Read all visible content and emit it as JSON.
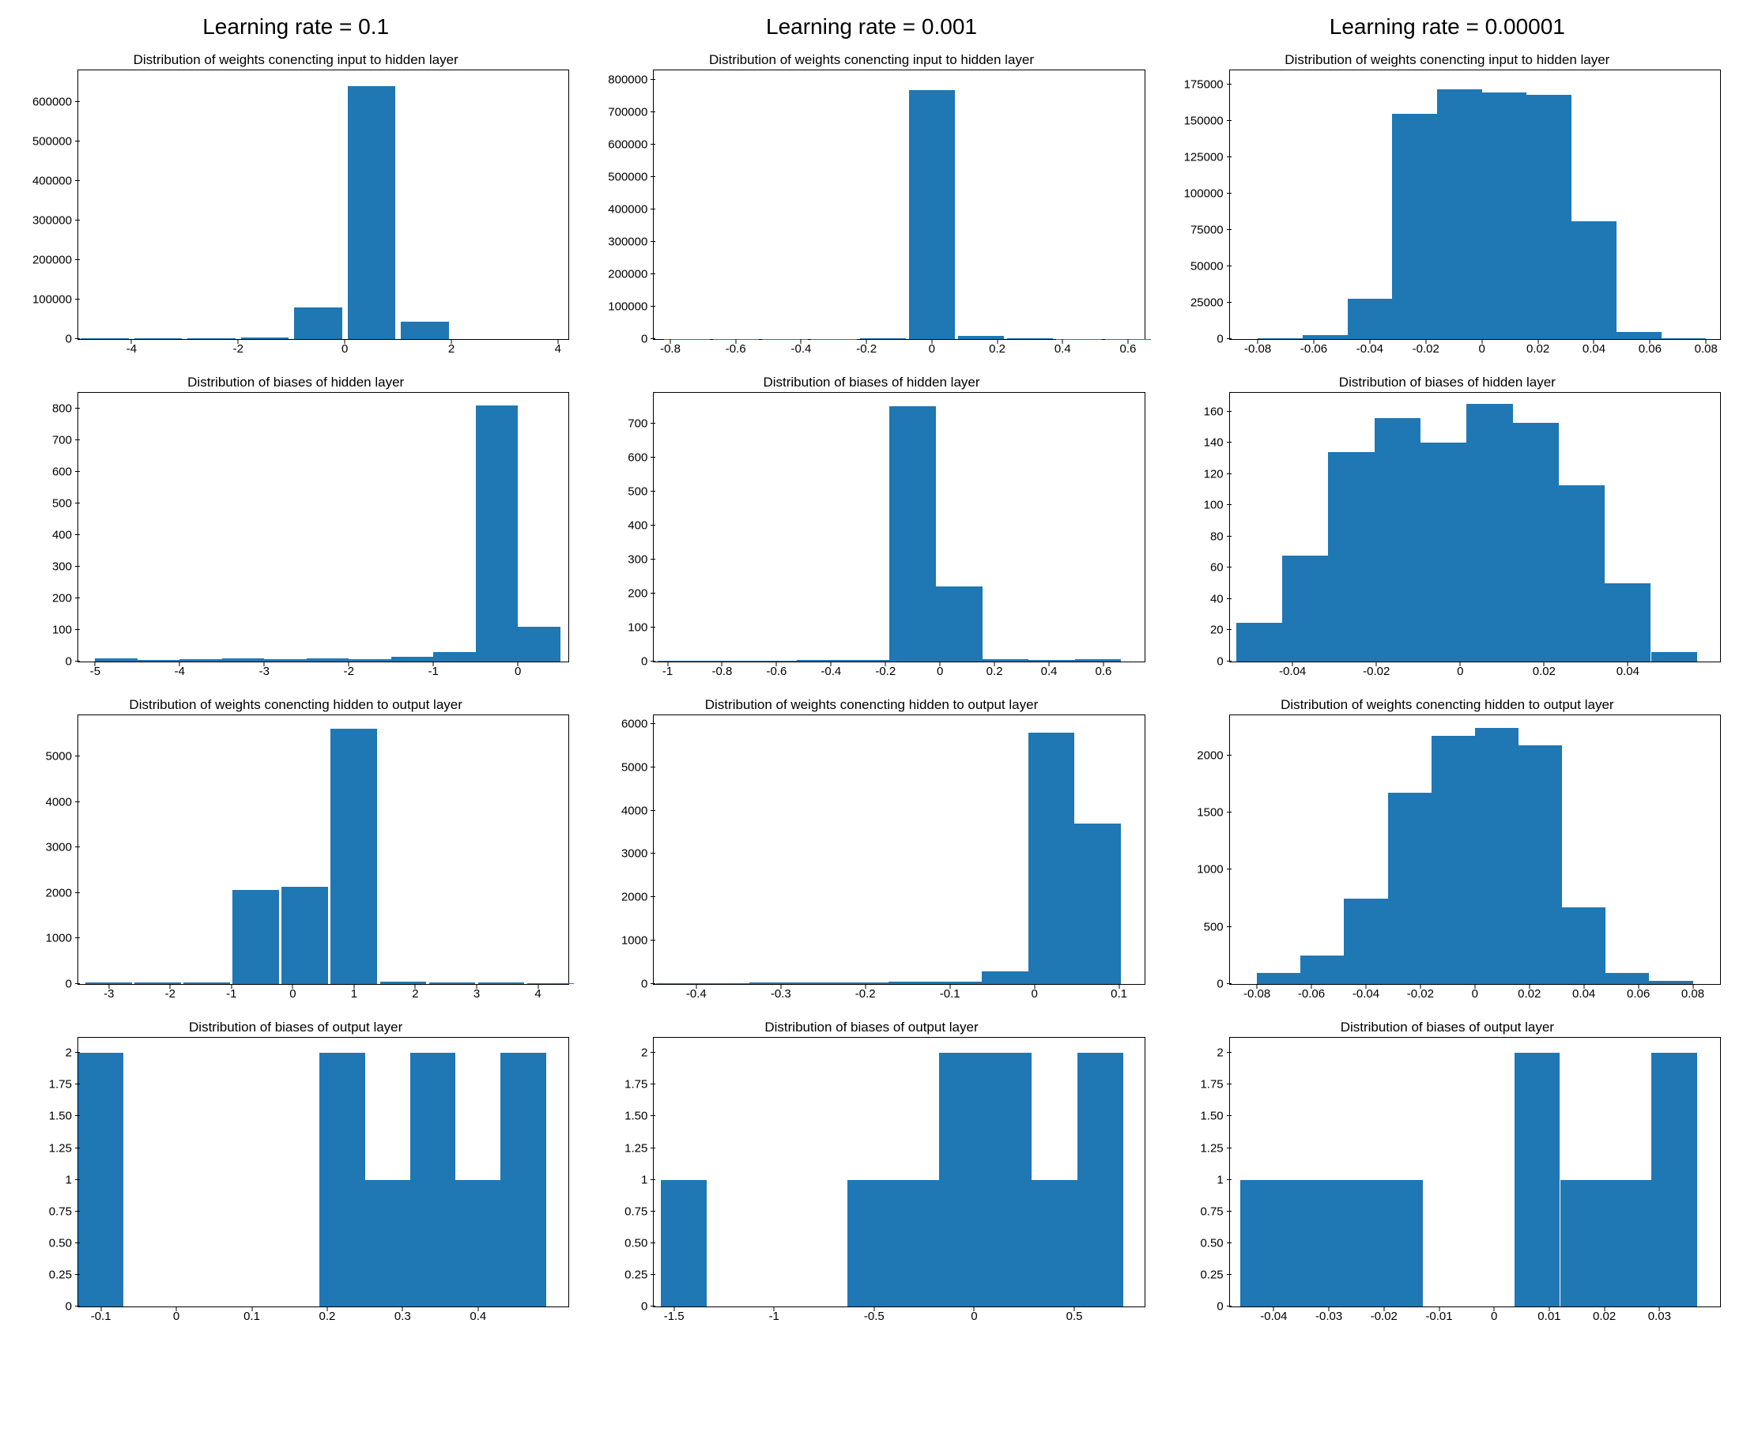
{
  "columns": [
    {
      "header": "Learning rate = 0.1"
    },
    {
      "header": "Learning rate = 0.001"
    },
    {
      "header": "Learning rate = 0.00001"
    }
  ],
  "bar_color": "#1f77b4",
  "charts": [
    [
      {
        "title": "Distribution of weights conencting input to hidden layer",
        "type": "bar",
        "xlim": [
          -5,
          4.2
        ],
        "ylim": [
          0,
          680000
        ],
        "xticks": [
          -4,
          -2,
          0,
          2,
          4
        ],
        "yticks": [
          0,
          100000,
          200000,
          300000,
          400000,
          500000,
          600000
        ],
        "bar_width": 0.9,
        "bars": [
          [
            -4.5,
            2000
          ],
          [
            -3.5,
            2000
          ],
          [
            -2.5,
            3000
          ],
          [
            -1.5,
            5000
          ],
          [
            -0.5,
            80000
          ],
          [
            0.5,
            640000
          ],
          [
            1.5,
            45000
          ]
        ]
      },
      {
        "title": "Distribution of biases of hidden layer",
        "type": "bar",
        "xlim": [
          -5.2,
          0.6
        ],
        "ylim": [
          0,
          850
        ],
        "xticks": [
          -5,
          -4,
          -3,
          -2,
          -1,
          0
        ],
        "yticks": [
          0,
          100,
          200,
          300,
          400,
          500,
          600,
          700,
          800
        ],
        "bar_width": 0.5,
        "bars": [
          [
            -4.75,
            10
          ],
          [
            -4.25,
            5
          ],
          [
            -3.75,
            8
          ],
          [
            -3.25,
            10
          ],
          [
            -2.75,
            8
          ],
          [
            -2.25,
            10
          ],
          [
            -1.75,
            8
          ],
          [
            -1.25,
            15
          ],
          [
            -0.75,
            30
          ],
          [
            -0.25,
            810
          ],
          [
            0.25,
            110
          ]
        ]
      },
      {
        "title": "Distribution of weights conencting hidden to output layer",
        "type": "bar",
        "xlim": [
          -3.5,
          4.5
        ],
        "ylim": [
          0,
          5900
        ],
        "xticks": [
          -3,
          -2,
          -1,
          0,
          1,
          2,
          3,
          4
        ],
        "yticks": [
          0,
          1000,
          2000,
          3000,
          4000,
          5000
        ],
        "bar_width": 0.76,
        "bars": [
          [
            -3.0,
            30
          ],
          [
            -2.2,
            30
          ],
          [
            -1.4,
            30
          ],
          [
            -0.6,
            2060
          ],
          [
            0.2,
            2140
          ],
          [
            1.0,
            5600
          ],
          [
            1.8,
            50
          ],
          [
            2.6,
            40
          ],
          [
            3.4,
            30
          ],
          [
            4.2,
            20
          ]
        ]
      },
      {
        "title": "Distribution of biases of output layer",
        "type": "bar",
        "xlim": [
          -0.13,
          0.52
        ],
        "ylim": [
          0,
          2.12
        ],
        "xticks": [
          -0.1,
          0.0,
          0.1,
          0.2,
          0.3,
          0.4
        ],
        "yticks": [
          0.0,
          0.25,
          0.5,
          0.75,
          1.0,
          1.25,
          1.5,
          1.75,
          2.0
        ],
        "bar_width": 0.06,
        "bars": [
          [
            -0.1,
            2.0
          ],
          [
            0.22,
            2.0
          ],
          [
            0.28,
            1.0
          ],
          [
            0.34,
            2.0
          ],
          [
            0.4,
            1.0
          ],
          [
            0.46,
            2.0
          ]
        ]
      }
    ],
    [
      {
        "title": "Distribution of weights conencting input to hidden layer",
        "type": "bar",
        "xlim": [
          -0.85,
          0.65
        ],
        "ylim": [
          0,
          830000
        ],
        "xticks": [
          -0.8,
          -0.6,
          -0.4,
          -0.2,
          0.0,
          0.2,
          0.4,
          0.6
        ],
        "yticks": [
          0,
          100000,
          200000,
          300000,
          400000,
          500000,
          600000,
          700000,
          800000
        ],
        "bar_width": 0.14,
        "bars": [
          [
            -0.75,
            500
          ],
          [
            -0.6,
            500
          ],
          [
            -0.45,
            500
          ],
          [
            -0.3,
            1000
          ],
          [
            -0.15,
            3000
          ],
          [
            0.0,
            770000
          ],
          [
            0.15,
            10000
          ],
          [
            0.3,
            2000
          ],
          [
            0.45,
            1000
          ],
          [
            0.6,
            500
          ]
        ]
      },
      {
        "title": "Distribution of biases of hidden layer",
        "type": "bar",
        "xlim": [
          -1.05,
          0.75
        ],
        "ylim": [
          0,
          790
        ],
        "xticks": [
          -1.0,
          -0.8,
          -0.6,
          -0.4,
          -0.2,
          0.0,
          0.2,
          0.4,
          0.6
        ],
        "yticks": [
          0,
          100,
          200,
          300,
          400,
          500,
          600,
          700
        ],
        "bar_width": 0.17,
        "bars": [
          [
            -0.95,
            3
          ],
          [
            -0.78,
            3
          ],
          [
            -0.61,
            3
          ],
          [
            -0.44,
            4
          ],
          [
            -0.27,
            5
          ],
          [
            -0.1,
            750
          ],
          [
            0.07,
            220
          ],
          [
            0.24,
            8
          ],
          [
            0.41,
            4
          ],
          [
            0.58,
            6
          ]
        ]
      },
      {
        "title": "Distribution of weights conencting hidden to output layer",
        "type": "bar",
        "xlim": [
          -0.45,
          0.13
        ],
        "ylim": [
          0,
          6200
        ],
        "xticks": [
          -0.4,
          -0.3,
          -0.2,
          -0.1,
          0.0,
          0.1
        ],
        "yticks": [
          0,
          1000,
          2000,
          3000,
          4000,
          5000,
          6000
        ],
        "bar_width": 0.055,
        "bars": [
          [
            -0.42,
            20
          ],
          [
            -0.365,
            20
          ],
          [
            -0.31,
            30
          ],
          [
            -0.255,
            30
          ],
          [
            -0.2,
            40
          ],
          [
            -0.145,
            50
          ],
          [
            -0.09,
            60
          ],
          [
            -0.035,
            300
          ],
          [
            0.02,
            5800
          ],
          [
            0.075,
            3700
          ]
        ]
      },
      {
        "title": "Distribution of biases of output layer",
        "type": "bar",
        "xlim": [
          -1.6,
          0.85
        ],
        "ylim": [
          0,
          2.12
        ],
        "xticks": [
          -1.5,
          -1.0,
          -0.5,
          0.0,
          0.5
        ],
        "yticks": [
          0.0,
          0.25,
          0.5,
          0.75,
          1.0,
          1.25,
          1.5,
          1.75,
          2.0
        ],
        "bar_width": 0.23,
        "bars": [
          [
            -1.45,
            1.0
          ],
          [
            -0.52,
            1.0
          ],
          [
            -0.29,
            1.0
          ],
          [
            -0.06,
            2.0
          ],
          [
            0.17,
            2.0
          ],
          [
            0.4,
            1.0
          ],
          [
            0.63,
            2.0
          ]
        ]
      }
    ],
    [
      {
        "title": "Distribution of weights conencting input to hidden layer",
        "type": "bar",
        "xlim": [
          -0.09,
          0.085
        ],
        "ylim": [
          0,
          185000
        ],
        "xticks": [
          -0.08,
          -0.06,
          -0.04,
          -0.02,
          0.0,
          0.02,
          0.04,
          0.06,
          0.08
        ],
        "yticks": [
          0,
          25000,
          50000,
          75000,
          100000,
          125000,
          150000,
          175000
        ],
        "bar_width": 0.016,
        "bars": [
          [
            -0.072,
            500
          ],
          [
            -0.056,
            3000
          ],
          [
            -0.04,
            28000
          ],
          [
            -0.024,
            155000
          ],
          [
            -0.008,
            172000
          ],
          [
            0.008,
            170000
          ],
          [
            0.024,
            168000
          ],
          [
            0.04,
            81000
          ],
          [
            0.056,
            5000
          ],
          [
            0.072,
            500
          ]
        ]
      },
      {
        "title": "Distribution of biases of hidden layer",
        "type": "bar",
        "xlim": [
          -0.055,
          0.062
        ],
        "ylim": [
          0,
          172
        ],
        "xticks": [
          -0.04,
          -0.02,
          0.0,
          0.02,
          0.04
        ],
        "yticks": [
          0,
          20,
          40,
          60,
          80,
          100,
          120,
          140,
          160
        ],
        "bar_width": 0.011,
        "bars": [
          [
            -0.048,
            25
          ],
          [
            -0.037,
            68
          ],
          [
            -0.026,
            134
          ],
          [
            -0.015,
            156
          ],
          [
            -0.004,
            140
          ],
          [
            0.007,
            165
          ],
          [
            0.018,
            153
          ],
          [
            0.029,
            113
          ],
          [
            0.04,
            50
          ],
          [
            0.051,
            6
          ]
        ]
      },
      {
        "title": "Distribution of weights conencting hidden to output layer",
        "type": "bar",
        "xlim": [
          -0.09,
          0.09
        ],
        "ylim": [
          0,
          2350
        ],
        "xticks": [
          -0.08,
          -0.06,
          -0.04,
          -0.02,
          0.0,
          0.02,
          0.04,
          0.06,
          0.08
        ],
        "yticks": [
          0,
          500,
          1000,
          1500,
          2000
        ],
        "bar_width": 0.016,
        "bars": [
          [
            -0.072,
            100
          ],
          [
            -0.056,
            250
          ],
          [
            -0.04,
            750
          ],
          [
            -0.024,
            1670
          ],
          [
            -0.008,
            2170
          ],
          [
            0.008,
            2240
          ],
          [
            0.024,
            2090
          ],
          [
            0.04,
            670
          ],
          [
            0.056,
            100
          ],
          [
            0.072,
            30
          ]
        ]
      },
      {
        "title": "Distribution of biases of output layer",
        "type": "bar",
        "xlim": [
          -0.048,
          0.041
        ],
        "ylim": [
          0,
          2.12
        ],
        "xticks": [
          -0.04,
          -0.03,
          -0.02,
          -0.01,
          0.0,
          0.01,
          0.02,
          0.03
        ],
        "yticks": [
          0.0,
          0.25,
          0.5,
          0.75,
          1.0,
          1.25,
          1.5,
          1.75,
          2.0
        ],
        "bar_width": 0.0083,
        "bars": [
          [
            -0.042,
            1.0
          ],
          [
            -0.0337,
            1.0
          ],
          [
            -0.0254,
            1.0
          ],
          [
            -0.0171,
            1.0
          ],
          [
            0.0078,
            2.0
          ],
          [
            0.0161,
            1.0
          ],
          [
            0.0244,
            1.0
          ],
          [
            0.0327,
            2.0
          ]
        ]
      }
    ]
  ]
}
